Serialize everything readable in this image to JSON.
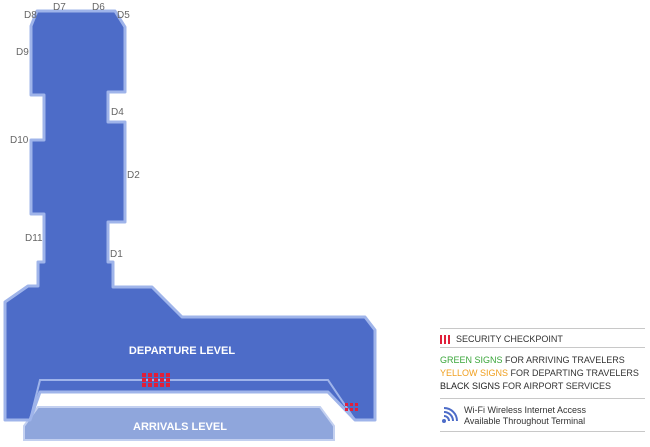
{
  "terminal": {
    "departure_level_label": "DEPARTURE LEVEL",
    "arrivals_level_label": "ARRIVALS LEVEL",
    "gates": [
      "D8",
      "D7",
      "D6",
      "D5",
      "D9",
      "D4",
      "D10",
      "D2",
      "D11",
      "D1"
    ]
  },
  "legend": {
    "security_checkpoint": "SECURITY CHECKPOINT",
    "signs": [
      {
        "color_word": "GREEN SIGNS",
        "rest": " FOR ARRIVING TRAVELERS",
        "color": "#3aa63a"
      },
      {
        "color_word": "YELLOW SIGNS",
        "rest": " FOR DEPARTING TRAVELERS",
        "color": "#f0a020"
      },
      {
        "color_word": "BLACK SIGNS",
        "rest": " FOR AIRPORT SERVICES",
        "color": "#222222"
      }
    ],
    "wifi_line1": "Wi-Fi Wireless Internet Access",
    "wifi_line2": "Available Throughout Terminal"
  },
  "colors": {
    "terminal_fill": "#4d6cc8",
    "terminal_outline": "#9fb4ea",
    "arrivals_fill": "#8fa6dc",
    "checkpoint": "#e0203a",
    "wifi": "#4d6cc8"
  }
}
